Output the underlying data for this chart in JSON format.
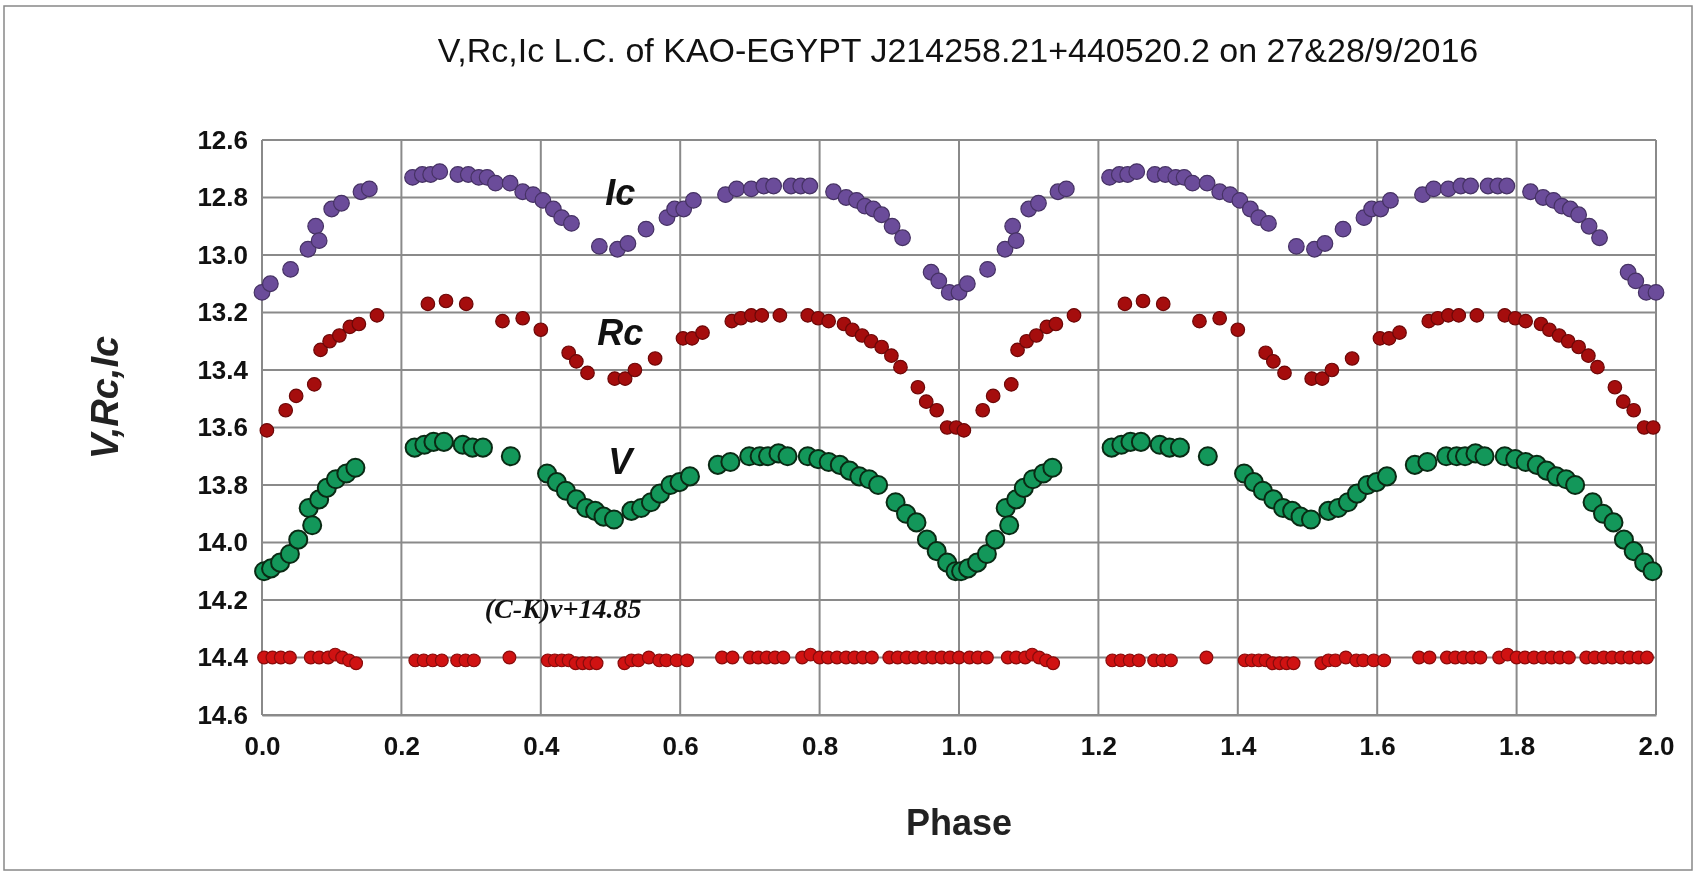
{
  "chart_data": {
    "type": "scatter",
    "title": "V,Rc,Ic L.C. of KAO-EGYPT J214258.21+440520.2 on 27&28/9/2016",
    "xlabel": "Phase",
    "ylabel": "V,Rc,Ic",
    "xlim": [
      0,
      2
    ],
    "xticks": [
      {
        "value": 0,
        "label": "0.0"
      },
      {
        "value": 0.2,
        "label": "0.2"
      },
      {
        "value": 0.4,
        "label": "0.4"
      },
      {
        "value": 0.6,
        "label": "0.6"
      },
      {
        "value": 0.8,
        "label": "0.8"
      },
      {
        "value": 1,
        "label": "1.0"
      },
      {
        "value": 1.2,
        "label": "1.2"
      },
      {
        "value": 1.4,
        "label": "1.4"
      },
      {
        "value": 1.6,
        "label": "1.6"
      },
      {
        "value": 1.8,
        "label": "1.8"
      },
      {
        "value": 2,
        "label": "2.0"
      }
    ],
    "ylim": [
      14.6,
      12.6
    ],
    "yticks": [
      {
        "value": 12.6,
        "label": "12.6"
      },
      {
        "value": 12.8,
        "label": "12.8"
      },
      {
        "value": 13,
        "label": "13.0"
      },
      {
        "value": 13.2,
        "label": "13.2"
      },
      {
        "value": 13.4,
        "label": "13.4"
      },
      {
        "value": 13.6,
        "label": "13.6"
      },
      {
        "value": 13.8,
        "label": "13.8"
      },
      {
        "value": 14,
        "label": "14.0"
      },
      {
        "value": 14.2,
        "label": "14.2"
      },
      {
        "value": 14.4,
        "label": "14.4"
      },
      {
        "value": 14.6,
        "label": "14.6"
      }
    ],
    "grid": true,
    "legend": false,
    "marker": "circle",
    "series": [
      {
        "name": "Ic",
        "color": "#6b4c9a",
        "x": [
          0,
          0.012,
          0.041,
          0.066,
          0.077,
          0.082,
          0.1,
          0.114,
          0.142,
          0.154,
          0.216,
          0.23,
          0.242,
          0.255,
          0.281,
          0.296,
          0.311,
          0.323,
          0.335,
          0.356,
          0.374,
          0.389,
          0.403,
          0.418,
          0.43,
          0.444,
          0.484,
          0.51,
          0.525,
          0.551,
          0.581,
          0.592,
          0.605,
          0.619,
          0.665,
          0.681,
          0.702,
          0.72,
          0.734,
          0.759,
          0.773,
          0.786,
          0.82,
          0.838,
          0.853,
          0.865,
          0.877,
          0.889,
          0.904,
          0.919,
          0.96,
          0.971,
          0.986,
          1.0,
          1.012,
          1.041,
          1.066,
          1.077,
          1.082,
          1.1,
          1.114,
          1.142,
          1.154,
          1.216,
          1.23,
          1.242,
          1.255,
          1.281,
          1.296,
          1.311,
          1.323,
          1.335,
          1.356,
          1.374,
          1.389,
          1.403,
          1.418,
          1.43,
          1.444,
          1.484,
          1.51,
          1.525,
          1.551,
          1.581,
          1.592,
          1.605,
          1.619,
          1.665,
          1.681,
          1.702,
          1.72,
          1.734,
          1.759,
          1.773,
          1.786,
          1.82,
          1.838,
          1.853,
          1.865,
          1.877,
          1.889,
          1.904,
          1.919,
          1.96,
          1.971,
          1.986,
          2.0
        ],
        "values": [
          13.13,
          13.1,
          13.05,
          12.98,
          12.9,
          12.95,
          12.84,
          12.82,
          12.78,
          12.77,
          12.73,
          12.72,
          12.72,
          12.71,
          12.72,
          12.72,
          12.73,
          12.73,
          12.75,
          12.75,
          12.78,
          12.79,
          12.81,
          12.84,
          12.87,
          12.89,
          12.97,
          12.98,
          12.96,
          12.91,
          12.87,
          12.84,
          12.84,
          12.81,
          12.79,
          12.77,
          12.77,
          12.76,
          12.76,
          12.76,
          12.76,
          12.76,
          12.78,
          12.8,
          12.81,
          12.83,
          12.84,
          12.86,
          12.9,
          12.94,
          13.06,
          13.09,
          13.13,
          13.13,
          13.1,
          13.05,
          12.98,
          12.9,
          12.95,
          12.84,
          12.82,
          12.78,
          12.77,
          12.73,
          12.72,
          12.72,
          12.71,
          12.72,
          12.72,
          12.73,
          12.73,
          12.75,
          12.75,
          12.78,
          12.79,
          12.81,
          12.84,
          12.87,
          12.89,
          12.97,
          12.98,
          12.96,
          12.91,
          12.87,
          12.84,
          12.84,
          12.81,
          12.79,
          12.77,
          12.77,
          12.76,
          12.76,
          12.76,
          12.76,
          12.76,
          12.78,
          12.8,
          12.81,
          12.83,
          12.84,
          12.86,
          12.9,
          12.94,
          13.06,
          13.09,
          13.13,
          13.13
        ]
      },
      {
        "name": "Rc",
        "color": "#a50d0d",
        "x": [
          0.007,
          0.034,
          0.049,
          0.075,
          0.084,
          0.097,
          0.111,
          0.126,
          0.139,
          0.165,
          0.238,
          0.264,
          0.293,
          0.345,
          0.374,
          0.4,
          0.44,
          0.451,
          0.467,
          0.506,
          0.521,
          0.535,
          0.564,
          0.604,
          0.617,
          0.632,
          0.674,
          0.687,
          0.702,
          0.717,
          0.743,
          0.783,
          0.798,
          0.813,
          0.835,
          0.847,
          0.861,
          0.874,
          0.889,
          0.903,
          0.916,
          0.941,
          0.953,
          0.968,
          0.983,
          0.996,
          1.007,
          1.034,
          1.049,
          1.075,
          1.084,
          1.097,
          1.111,
          1.126,
          1.139,
          1.165,
          1.238,
          1.264,
          1.293,
          1.345,
          1.374,
          1.4,
          1.44,
          1.451,
          1.467,
          1.506,
          1.521,
          1.535,
          1.564,
          1.604,
          1.617,
          1.632,
          1.674,
          1.687,
          1.702,
          1.717,
          1.743,
          1.783,
          1.798,
          1.813,
          1.835,
          1.847,
          1.861,
          1.874,
          1.889,
          1.903,
          1.916,
          1.941,
          1.953,
          1.968,
          1.983,
          1.996
        ],
        "values": [
          13.61,
          13.54,
          13.49,
          13.45,
          13.33,
          13.3,
          13.28,
          13.25,
          13.24,
          13.21,
          13.17,
          13.16,
          13.17,
          13.23,
          13.22,
          13.26,
          13.34,
          13.37,
          13.41,
          13.43,
          13.43,
          13.4,
          13.36,
          13.29,
          13.29,
          13.27,
          13.23,
          13.22,
          13.21,
          13.21,
          13.21,
          13.21,
          13.22,
          13.23,
          13.24,
          13.26,
          13.28,
          13.3,
          13.32,
          13.35,
          13.39,
          13.46,
          13.51,
          13.54,
          13.6,
          13.6,
          13.61,
          13.54,
          13.49,
          13.45,
          13.33,
          13.3,
          13.28,
          13.25,
          13.24,
          13.21,
          13.17,
          13.16,
          13.17,
          13.23,
          13.22,
          13.26,
          13.34,
          13.37,
          13.41,
          13.43,
          13.43,
          13.4,
          13.36,
          13.29,
          13.29,
          13.27,
          13.23,
          13.22,
          13.21,
          13.21,
          13.21,
          13.21,
          13.22,
          13.23,
          13.24,
          13.26,
          13.28,
          13.3,
          13.32,
          13.35,
          13.39,
          13.46,
          13.51,
          13.54,
          13.6,
          13.6
        ]
      },
      {
        "name": "V",
        "color": "#13975a",
        "x": [
          0.003,
          0.013,
          0.026,
          0.04,
          0.052,
          0.067,
          0.072,
          0.082,
          0.093,
          0.106,
          0.121,
          0.134,
          0.219,
          0.233,
          0.246,
          0.261,
          0.288,
          0.302,
          0.317,
          0.357,
          0.409,
          0.423,
          0.436,
          0.451,
          0.465,
          0.478,
          0.49,
          0.505,
          0.53,
          0.544,
          0.558,
          0.571,
          0.586,
          0.599,
          0.614,
          0.654,
          0.672,
          0.699,
          0.714,
          0.726,
          0.741,
          0.754,
          0.783,
          0.798,
          0.813,
          0.829,
          0.843,
          0.857,
          0.871,
          0.884,
          0.909,
          0.924,
          0.939,
          0.954,
          0.968,
          0.983,
          0.995,
          1.003,
          1.013,
          1.026,
          1.04,
          1.052,
          1.067,
          1.072,
          1.082,
          1.093,
          1.106,
          1.121,
          1.134,
          1.219,
          1.233,
          1.246,
          1.261,
          1.288,
          1.302,
          1.317,
          1.357,
          1.409,
          1.423,
          1.436,
          1.451,
          1.465,
          1.478,
          1.49,
          1.505,
          1.53,
          1.544,
          1.558,
          1.571,
          1.586,
          1.599,
          1.614,
          1.654,
          1.672,
          1.699,
          1.714,
          1.726,
          1.741,
          1.754,
          1.783,
          1.798,
          1.813,
          1.829,
          1.843,
          1.857,
          1.871,
          1.884,
          1.909,
          1.924,
          1.939,
          1.954,
          1.968,
          1.983,
          1.995
        ],
        "values": [
          14.1,
          14.09,
          14.07,
          14.04,
          13.99,
          13.88,
          13.94,
          13.85,
          13.81,
          13.78,
          13.76,
          13.74,
          13.67,
          13.66,
          13.65,
          13.65,
          13.66,
          13.67,
          13.67,
          13.7,
          13.76,
          13.79,
          13.82,
          13.85,
          13.88,
          13.89,
          13.91,
          13.92,
          13.89,
          13.88,
          13.86,
          13.83,
          13.8,
          13.79,
          13.77,
          13.73,
          13.72,
          13.7,
          13.7,
          13.7,
          13.69,
          13.7,
          13.7,
          13.71,
          13.72,
          13.73,
          13.75,
          13.77,
          13.78,
          13.8,
          13.86,
          13.9,
          13.93,
          13.99,
          14.03,
          14.07,
          14.1,
          14.1,
          14.09,
          14.07,
          14.04,
          13.99,
          13.88,
          13.94,
          13.85,
          13.81,
          13.78,
          13.76,
          13.74,
          13.67,
          13.66,
          13.65,
          13.65,
          13.66,
          13.67,
          13.67,
          13.7,
          13.76,
          13.79,
          13.82,
          13.85,
          13.88,
          13.89,
          13.91,
          13.92,
          13.89,
          13.88,
          13.86,
          13.83,
          13.8,
          13.79,
          13.77,
          13.73,
          13.72,
          13.7,
          13.7,
          13.7,
          13.69,
          13.7,
          13.7,
          13.71,
          13.72,
          13.73,
          13.75,
          13.77,
          13.78,
          13.8,
          13.86,
          13.9,
          13.93,
          13.99,
          14.03,
          14.07,
          14.1
        ]
      },
      {
        "name": "(C-K)v+14.85",
        "color": "#d01212",
        "x": [
          0.003,
          0.015,
          0.027,
          0.04,
          0.07,
          0.082,
          0.095,
          0.105,
          0.115,
          0.125,
          0.135,
          0.22,
          0.232,
          0.245,
          0.258,
          0.28,
          0.292,
          0.304,
          0.355,
          0.41,
          0.42,
          0.43,
          0.44,
          0.45,
          0.46,
          0.47,
          0.48,
          0.52,
          0.53,
          0.54,
          0.555,
          0.57,
          0.58,
          0.595,
          0.61,
          0.66,
          0.675,
          0.7,
          0.712,
          0.724,
          0.736,
          0.748,
          0.775,
          0.787,
          0.8,
          0.812,
          0.825,
          0.838,
          0.85,
          0.862,
          0.875,
          0.9,
          0.912,
          0.925,
          0.937,
          0.95,
          0.962,
          0.975,
          0.987,
          1.0,
          1.015,
          1.027,
          1.04,
          1.07,
          1.082,
          1.095,
          1.105,
          1.115,
          1.125,
          1.135,
          1.22,
          1.232,
          1.245,
          1.258,
          1.28,
          1.292,
          1.304,
          1.355,
          1.41,
          1.42,
          1.43,
          1.44,
          1.45,
          1.46,
          1.47,
          1.48,
          1.52,
          1.53,
          1.54,
          1.555,
          1.57,
          1.58,
          1.595,
          1.61,
          1.66,
          1.675,
          1.7,
          1.712,
          1.724,
          1.736,
          1.748,
          1.775,
          1.787,
          1.8,
          1.812,
          1.825,
          1.838,
          1.85,
          1.862,
          1.875,
          1.9,
          1.912,
          1.925,
          1.937,
          1.95,
          1.962,
          1.975,
          1.987
        ],
        "values": [
          14.4,
          14.4,
          14.4,
          14.4,
          14.4,
          14.4,
          14.4,
          14.39,
          14.4,
          14.41,
          14.42,
          14.41,
          14.41,
          14.41,
          14.41,
          14.41,
          14.41,
          14.41,
          14.4,
          14.41,
          14.41,
          14.41,
          14.41,
          14.42,
          14.42,
          14.42,
          14.42,
          14.42,
          14.41,
          14.41,
          14.4,
          14.41,
          14.41,
          14.41,
          14.41,
          14.4,
          14.4,
          14.4,
          14.4,
          14.4,
          14.4,
          14.4,
          14.4,
          14.39,
          14.4,
          14.4,
          14.4,
          14.4,
          14.4,
          14.4,
          14.4,
          14.4,
          14.4,
          14.4,
          14.4,
          14.4,
          14.4,
          14.4,
          14.4,
          14.4,
          14.4,
          14.4,
          14.4,
          14.4,
          14.4,
          14.4,
          14.39,
          14.4,
          14.41,
          14.42,
          14.41,
          14.41,
          14.41,
          14.41,
          14.41,
          14.41,
          14.41,
          14.4,
          14.41,
          14.41,
          14.41,
          14.41,
          14.42,
          14.42,
          14.42,
          14.42,
          14.42,
          14.41,
          14.41,
          14.4,
          14.41,
          14.41,
          14.41,
          14.41,
          14.4,
          14.4,
          14.4,
          14.4,
          14.4,
          14.4,
          14.4,
          14.4,
          14.39,
          14.4,
          14.4,
          14.4,
          14.4,
          14.4,
          14.4,
          14.4,
          14.4,
          14.4,
          14.4,
          14.4,
          14.4,
          14.4,
          14.4,
          14.4
        ]
      }
    ]
  }
}
